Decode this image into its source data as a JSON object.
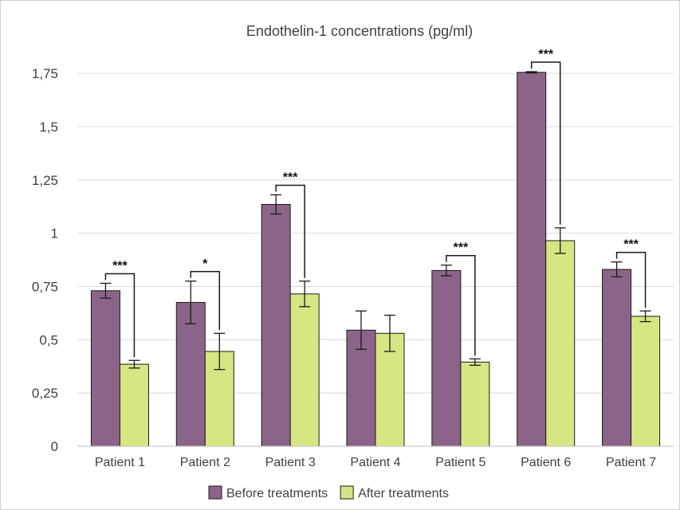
{
  "chart_data": {
    "type": "bar",
    "title": "Endothelin-1 concentrations (pg/ml)",
    "xlabel": "",
    "ylabel": "",
    "categories": [
      "Patient 1",
      "Patient 2",
      "Patient 3",
      "Patient 4",
      "Patient 5",
      "Patient 6",
      "Patient 7"
    ],
    "series": [
      {
        "name": "Before treatments",
        "color": "#8c6489",
        "values": [
          0.73,
          0.675,
          1.135,
          0.545,
          0.825,
          1.755,
          0.83
        ],
        "errors": [
          0.035,
          0.1,
          0.045,
          0.09,
          0.025,
          0.003,
          0.035
        ]
      },
      {
        "name": "After treatments",
        "color": "#d7e583",
        "values": [
          0.385,
          0.445,
          0.715,
          0.53,
          0.395,
          0.965,
          0.61
        ],
        "errors": [
          0.018,
          0.085,
          0.06,
          0.085,
          0.015,
          0.06,
          0.025
        ]
      }
    ],
    "ylim": [
      0,
      1.87
    ],
    "yticks": [
      0,
      0.25,
      0.5,
      0.75,
      1,
      1.25,
      1.5,
      1.75
    ],
    "ytick_labels": [
      "0",
      "0,25",
      "0,5",
      "0,75",
      "1",
      "1,25",
      "1,5",
      "1,75"
    ],
    "grid": true,
    "legend_position": "bottom",
    "significance": [
      "***",
      "*",
      "***",
      "",
      "***",
      "***",
      "***"
    ]
  }
}
